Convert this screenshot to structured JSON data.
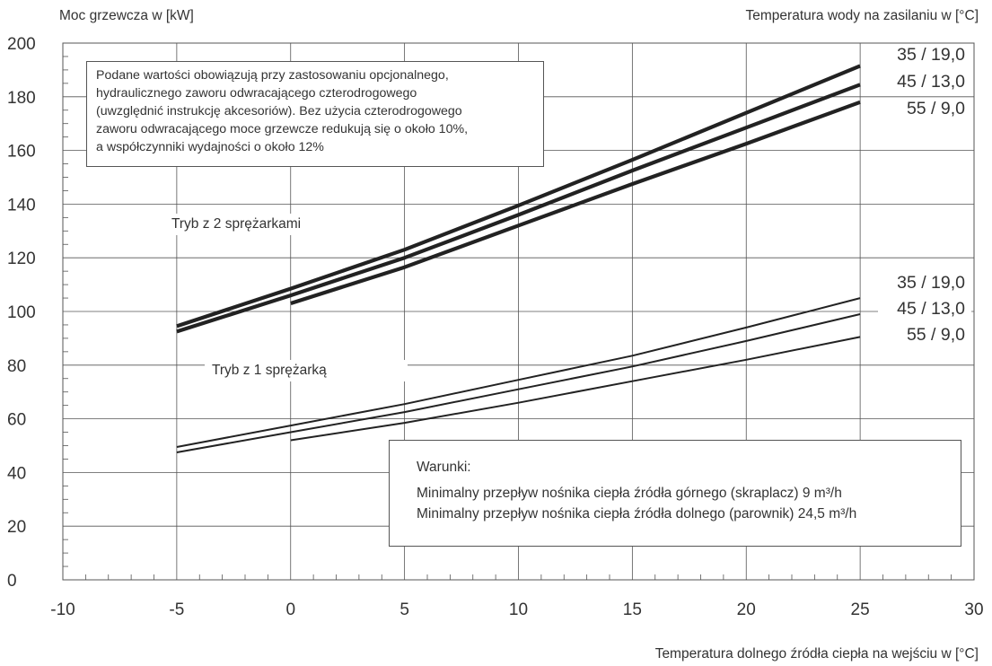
{
  "chart_data": {
    "type": "line",
    "y_axis_title": "Moc grzewcza w [kW]",
    "series_group_title": "Temperatura wody na zasilaniu w [°C]",
    "x_axis_title": "Temperatura dolnego źródła ciepła na wejściu w [°C]",
    "xlim": [
      -10,
      30
    ],
    "ylim": [
      0,
      200
    ],
    "x_ticks": [
      -10,
      -5,
      0,
      5,
      10,
      15,
      20,
      25,
      30
    ],
    "y_ticks": [
      0,
      20,
      40,
      60,
      80,
      100,
      120,
      140,
      160,
      180,
      200
    ],
    "grid": true,
    "series": [
      {
        "name": "35 / 19,0",
        "mode": "2",
        "x": [
          -5,
          0,
          5,
          10,
          15,
          20,
          25
        ],
        "y": [
          94.5,
          108.5,
          123,
          139.5,
          156.5,
          174,
          191.5
        ]
      },
      {
        "name": "45 / 13,0",
        "mode": "2",
        "x": [
          -5,
          0,
          5,
          10,
          15,
          20,
          25
        ],
        "y": [
          92.5,
          106,
          120,
          136,
          152.5,
          168.5,
          184.5
        ]
      },
      {
        "name": "55 / 9,0",
        "mode": "2",
        "x": [
          0,
          5,
          10,
          15,
          20,
          25
        ],
        "y": [
          103,
          116.5,
          132,
          147.5,
          162.5,
          178
        ]
      },
      {
        "name": "35 / 19,0",
        "mode": "1",
        "x": [
          -5,
          0,
          5,
          10,
          15,
          20,
          25
        ],
        "y": [
          49.5,
          57.5,
          65.5,
          74.5,
          83.5,
          94,
          105
        ]
      },
      {
        "name": "45 / 13,0",
        "mode": "1",
        "x": [
          -5,
          0,
          5,
          10,
          15,
          20,
          25
        ],
        "y": [
          47.5,
          55,
          62.5,
          71,
          79.5,
          89,
          99
        ]
      },
      {
        "name": "55 / 9,0",
        "mode": "1",
        "x": [
          0,
          5,
          10,
          15,
          20,
          25
        ],
        "y": [
          52,
          58.5,
          66,
          74,
          82,
          90.5
        ]
      }
    ],
    "mode_labels": {
      "two_compressors": "Tryb z 2 sprężarkami",
      "one_compressor": "Tryb z 1 sprężarką"
    },
    "note": [
      "Podane wartości obowiązują przy zastosowaniu opcjonalnego,",
      "hydraulicznego zaworu odwracającego czterodrogowego",
      "(uwzględnić instrukcję akcesoriów). Bez użycia czterodrogowego",
      "zaworu odwracającego moce grzewcze redukują się o około 10%,",
      "a współczynniki wydajności o około 12%"
    ],
    "conditions": {
      "title": "Warunki:",
      "lines": [
        "Minimalny przepływ nośnika ciepła źródła górnego (skraplacz) 9 m³/h",
        "Minimalny przepływ nośnika ciepła źródła dolnego (parownik) 24,5 m³/h"
      ]
    },
    "colors": {
      "line": "#222222",
      "grid": "#555555",
      "text": "#333333"
    }
  }
}
